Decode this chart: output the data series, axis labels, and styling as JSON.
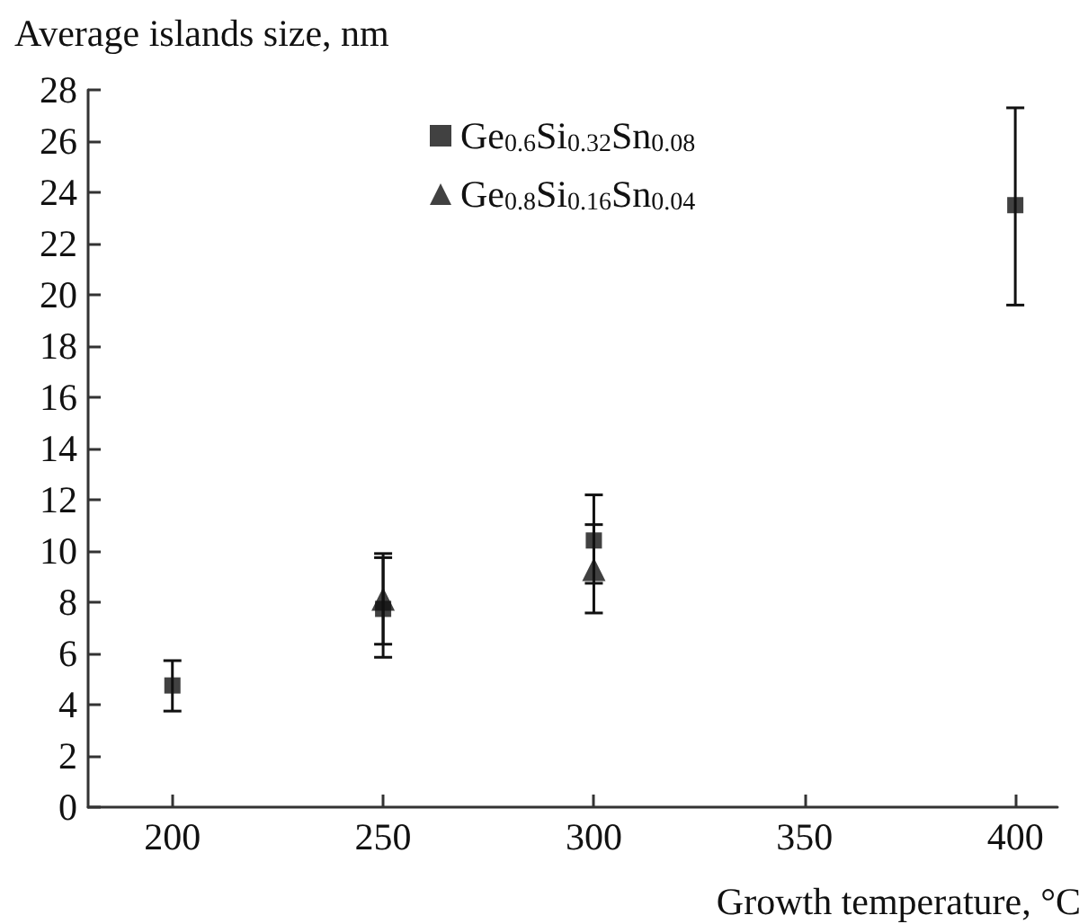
{
  "chart_data": {
    "type": "scatter",
    "ylabel": "Average islands size, nm",
    "xlabel": "Growth temperature, °C",
    "xlim": [
      180,
      410
    ],
    "xticks": [
      200,
      250,
      300,
      350,
      400
    ],
    "ylim": [
      0,
      28
    ],
    "yticks": [
      0,
      2,
      4,
      6,
      8,
      10,
      12,
      14,
      16,
      18,
      20,
      22,
      24,
      26,
      28
    ],
    "grid": false,
    "legend": "top",
    "series": [
      {
        "name": "Ge$_{0.6}$Si$_{0.32}$Sn$_{0.08}$",
        "color": "#111111",
        "marker": "square",
        "x": [
          200,
          250,
          300,
          400
        ],
        "values": [
          4.75,
          7.74,
          10.41,
          23.5
        ],
        "errors": [
          [
            3.75,
            5.72
          ],
          [
            5.85,
            9.74
          ],
          [
            8.74,
            12.19
          ],
          [
            19.6,
            27.3
          ]
        ]
      },
      {
        "name": "Ge$_{0.8}$Si$_{0.16}$Sn$_{0.04}$",
        "color": "#111111",
        "marker": "triangle",
        "x": [
          250,
          300
        ],
        "values": [
          8.12,
          9.28
        ],
        "errors": [
          [
            6.36,
            9.9
          ],
          [
            7.58,
            11.03
          ]
        ]
      }
    ]
  }
}
